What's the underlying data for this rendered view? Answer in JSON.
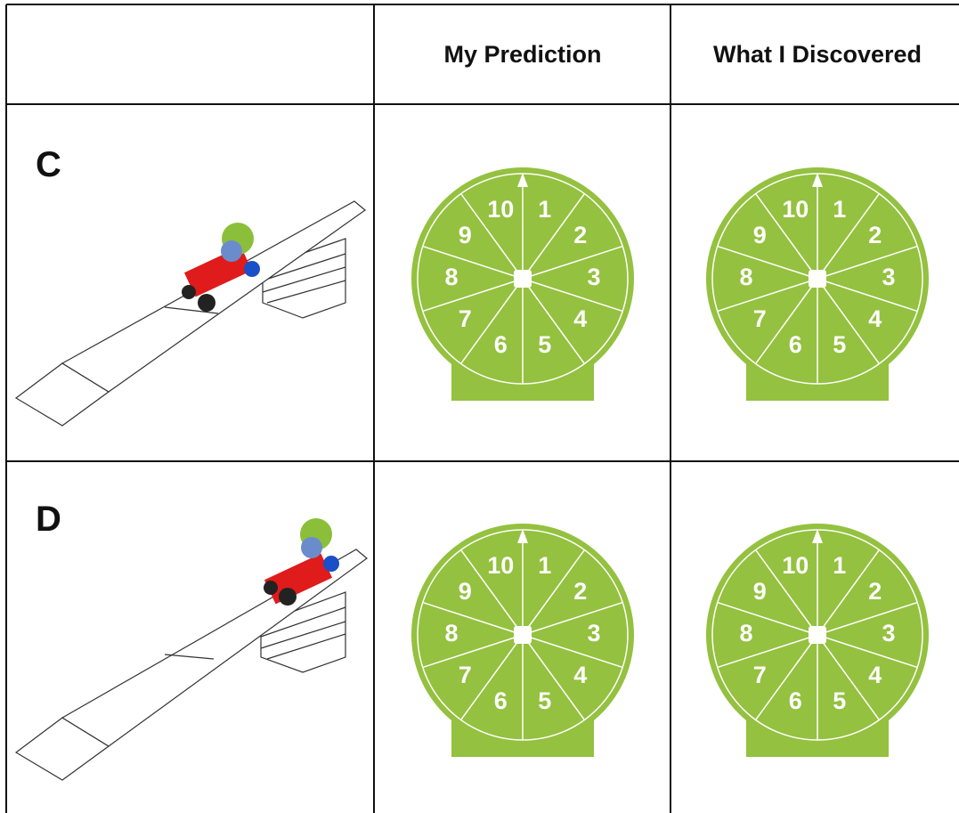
{
  "table": {
    "header": [
      "My Prediction",
      "What I Discovered"
    ],
    "rows": [
      {
        "label": "C"
      },
      {
        "label": "D"
      }
    ]
  },
  "dial": {
    "numbers": [
      1,
      2,
      3,
      4,
      5,
      6,
      7,
      8,
      9,
      10
    ]
  }
}
